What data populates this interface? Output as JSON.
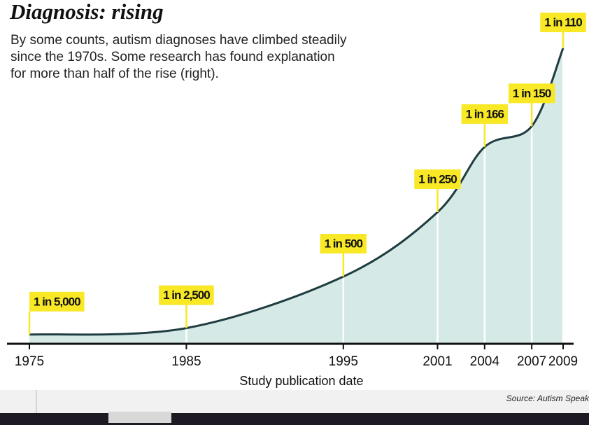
{
  "chart_data": {
    "type": "area",
    "title": "Diagnosis: rising",
    "subtitle": [
      "By some counts, autism diagnoses have climbed steadily",
      "since the 1970s. Some research has found explanation",
      "for more than half of the rise (right)."
    ],
    "x_label": "Study publication date",
    "source": "Source: Autism Speak",
    "x": [
      1975,
      1985,
      1995,
      2001,
      2004,
      2007,
      2009
    ],
    "values": [
      5000,
      2500,
      500,
      250,
      166,
      150,
      110
    ],
    "value_labels": [
      "1 in 5,000",
      "1 in 2,500",
      "1 in 500",
      "1 in 250",
      "1 in 166",
      "1 in 150",
      "1 in 110"
    ],
    "xlim": [
      1975,
      2009
    ],
    "xticks": [
      1975,
      1985,
      1995,
      2001,
      2004,
      2007,
      2009
    ],
    "line_color": "#1f3d40",
    "fill_color": "#d5e9e7",
    "label_color": "#f8e826"
  }
}
